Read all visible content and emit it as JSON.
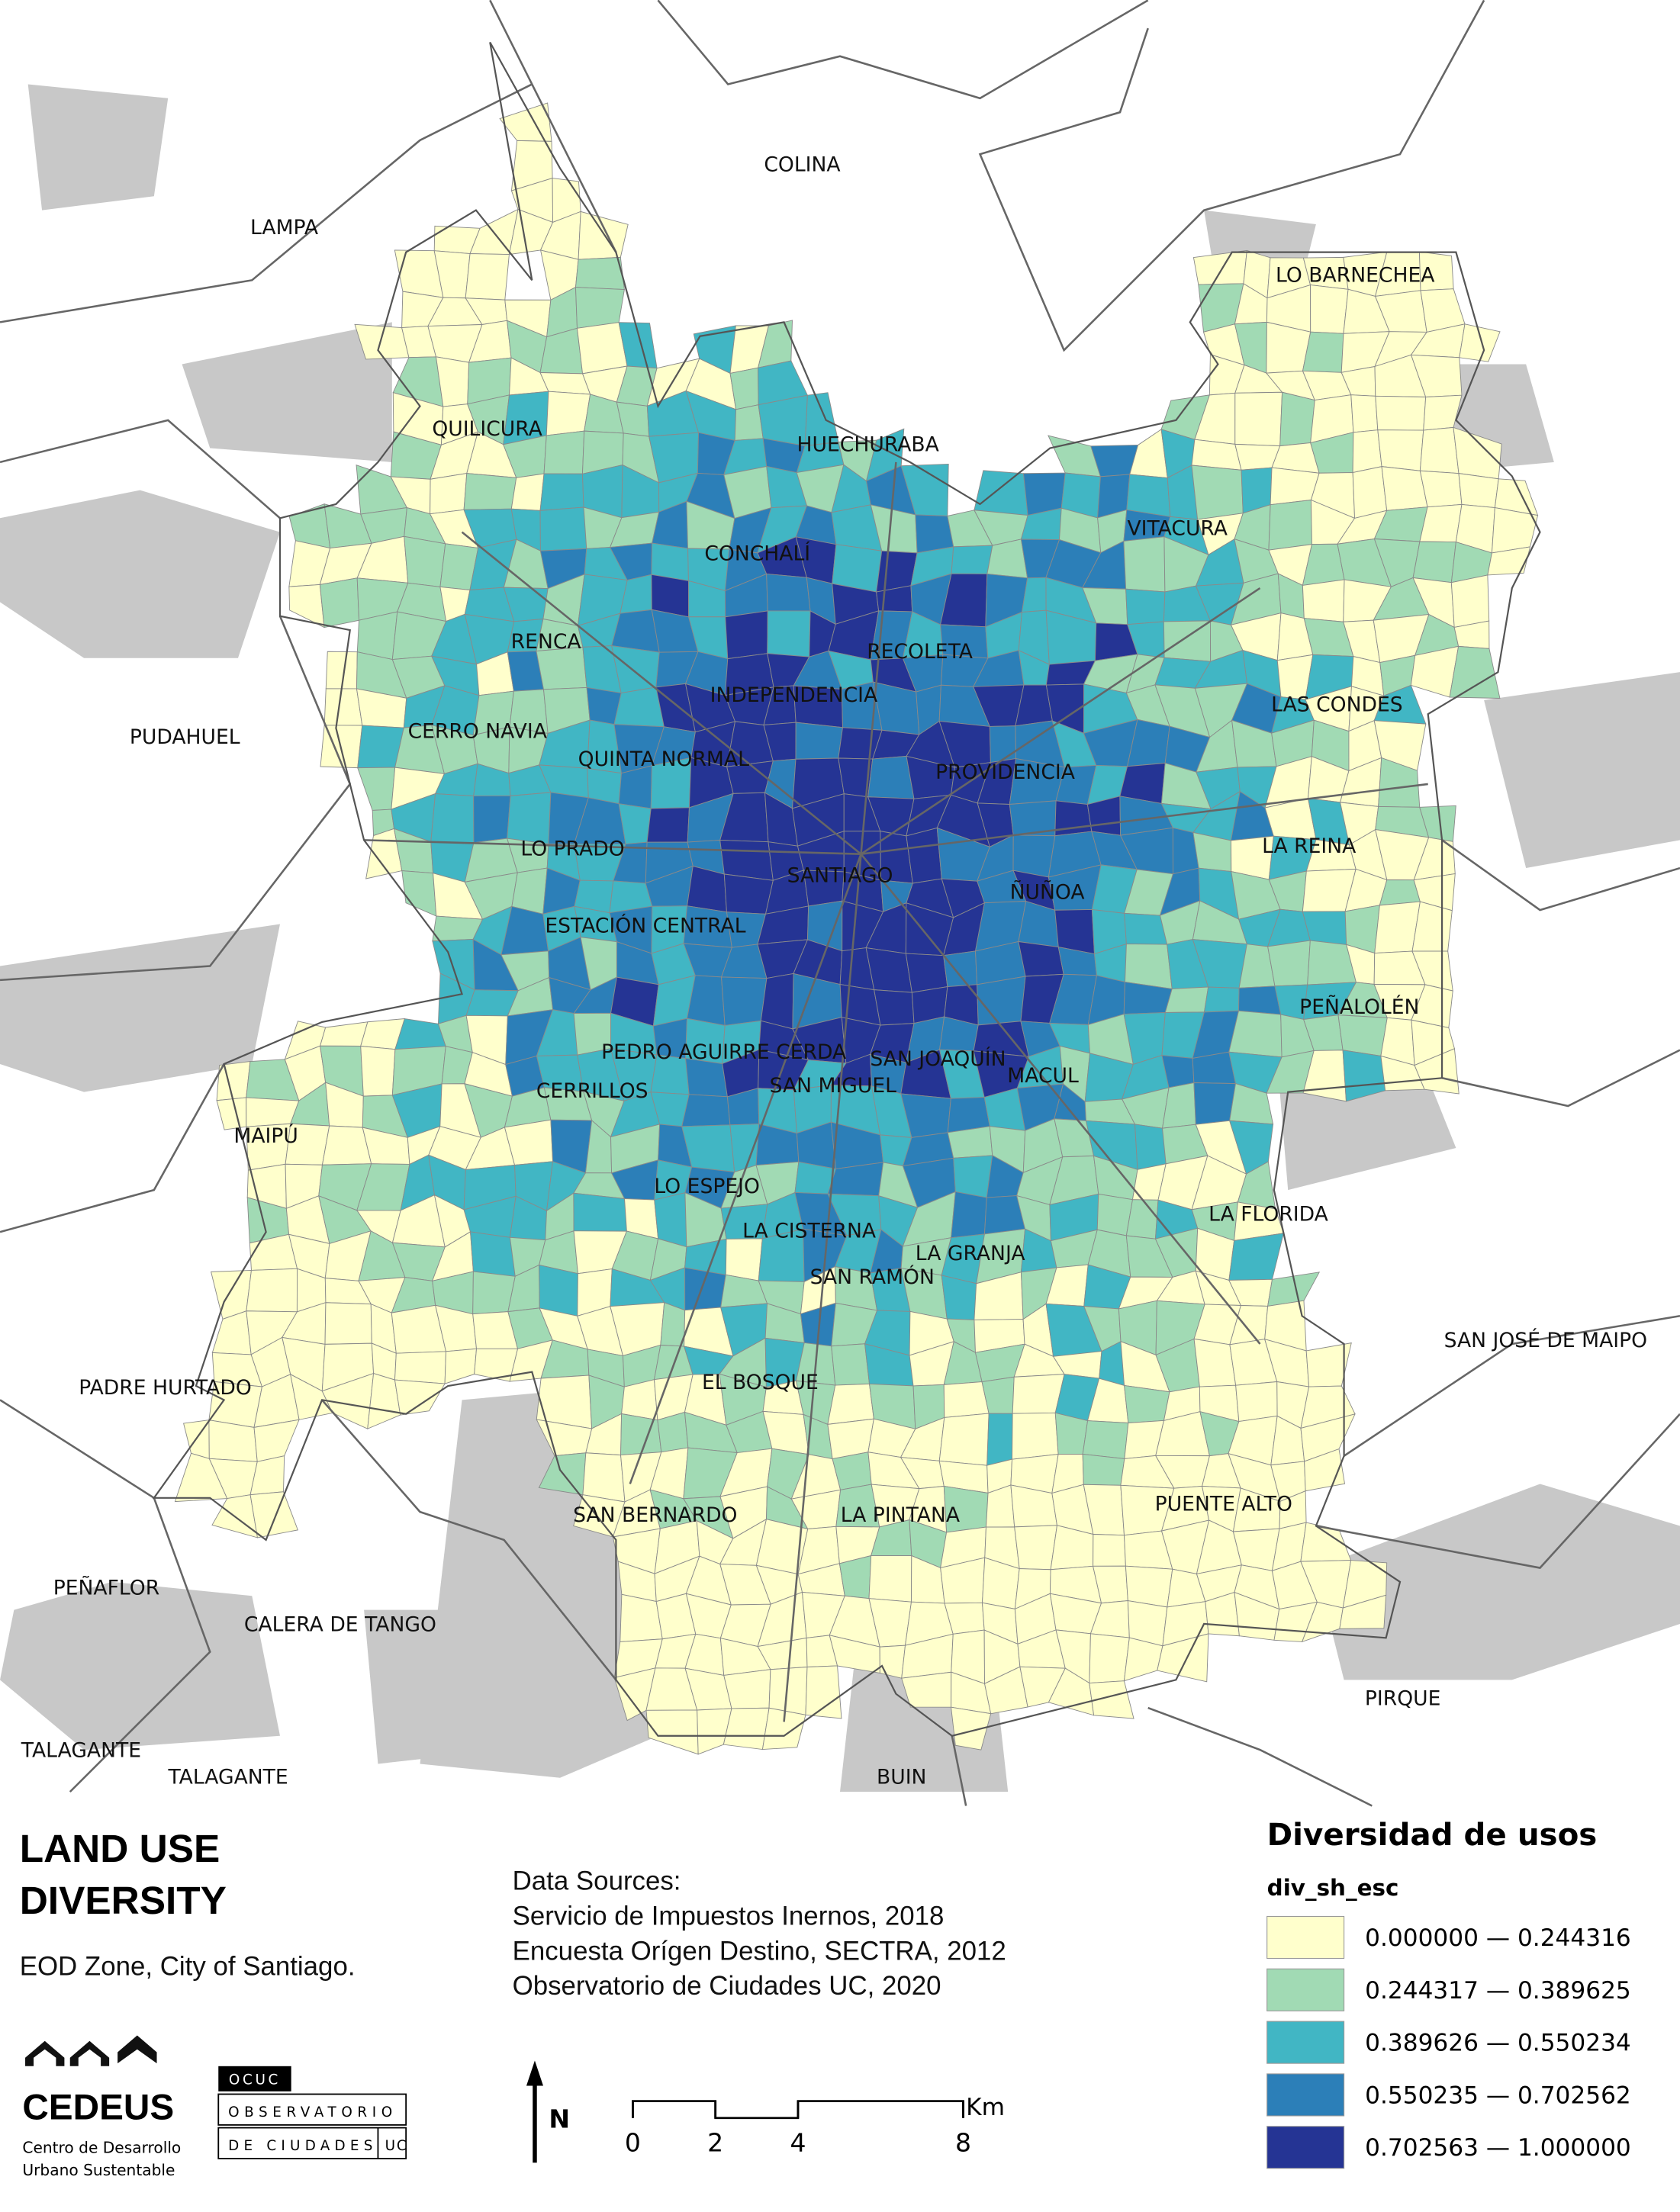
{
  "map": {
    "labels": [
      "COLINA",
      "LAMPA",
      "LO BARNECHEA",
      "QUILICURA",
      "HUECHURABA",
      "VITACURA",
      "CONCHALÍ",
      "RENCA",
      "RECOLETA",
      "INDEPENDENCIA",
      "LAS CONDES",
      "PUDAHUEL",
      "CERRO NAVIA",
      "QUINTA NORMAL",
      "PROVIDENCIA",
      "LO PRADO",
      "LA REINA",
      "SANTIAGO",
      "ÑUÑOA",
      "ESTACIÓN CENTRAL",
      "PEÑALOLÉN",
      "PEDRO AGUIRRE CERDA",
      "SAN JOAQUÍN",
      "MACUL",
      "SAN MIGUEL",
      "CERRILLOS",
      "MAIPÚ",
      "LO ESPEJO",
      "LA FLORIDA",
      "LA CISTERNA",
      "LA GRANJA",
      "SAN RAMÓN",
      "SAN JOSÉ DE MAIPO",
      "EL BOSQUE",
      "PADRE HURTADO",
      "SAN BERNARDO",
      "LA PINTANA",
      "PUENTE ALTO",
      "PEÑAFLOR",
      "CALERA DE TANGO",
      "PIRQUE",
      "TALAGANTE",
      "TALAGANTE",
      "BUIN"
    ]
  },
  "header": {
    "title_lines": [
      "LAND USE",
      "DIVERSITY"
    ],
    "subtitle": "EOD Zone, City of Santiago."
  },
  "sources": {
    "heading": "Data Sources:",
    "lines": [
      "Servicio de Impuestos Inernos, 2018",
      "Encuesta Orígen Destino, SECTRA, 2012",
      "Observatorio de Ciudades UC, 2020"
    ]
  },
  "legend": {
    "title": "Diversidad de usos",
    "field": "div_sh_esc",
    "items": [
      {
        "label": "0.000000 — 0.244316",
        "color": "#ffffcc"
      },
      {
        "label": "0.244317 — 0.389625",
        "color": "#a1dab4"
      },
      {
        "label": "0.389626 — 0.550234",
        "color": "#41b6c4"
      },
      {
        "label": "0.550235 — 0.702562",
        "color": "#2c7fb8"
      },
      {
        "label": "0.702563 — 1.000000",
        "color": "#253494"
      }
    ]
  },
  "north": "N",
  "scale": {
    "ticks": [
      0,
      2,
      4,
      8
    ],
    "unit": "Km"
  },
  "logos": {
    "cedeus": "CEDEUS",
    "cedeus_lines": [
      "Centro de Desarrollo",
      "Urbano Sustentable"
    ],
    "ocuc": "OCUC",
    "ocuc_lines": [
      "OBSERVATORIO",
      "DE CIUDADES",
      "UC"
    ]
  }
}
